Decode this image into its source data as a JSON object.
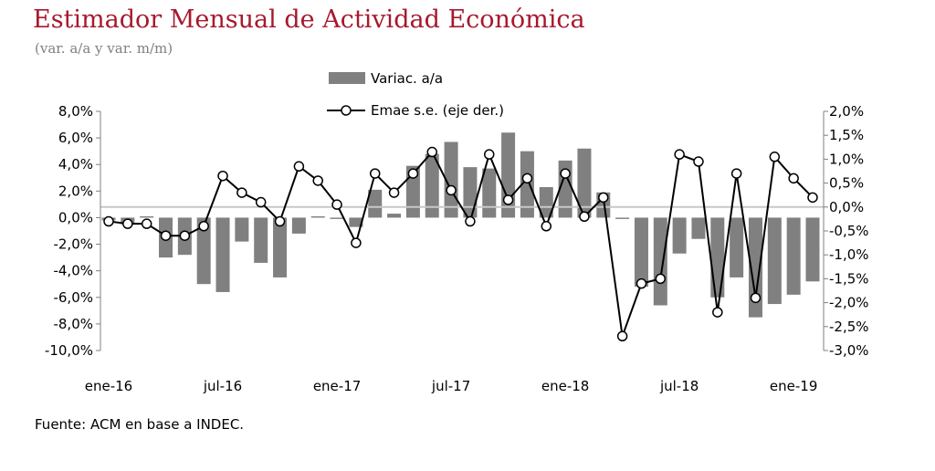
{
  "title": "Estimador Mensual de Actividad Económica",
  "subtitle": "(var. a/a y  var. m/m)",
  "source": "Fuente: ACM en base a INDEC.",
  "colors": {
    "title": "#a6192e",
    "bars": "#808080",
    "line": "#000000",
    "markerFill": "#ffffff",
    "zeroLine": "#c8c8c8",
    "axis": "#808080"
  },
  "chart_data": {
    "type": "bar",
    "categories": [
      "ene-16",
      "feb-16",
      "mar-16",
      "abr-16",
      "may-16",
      "jun-16",
      "jul-16",
      "ago-16",
      "sep-16",
      "oct-16",
      "nov-16",
      "dic-16",
      "ene-17",
      "feb-17",
      "mar-17",
      "abr-17",
      "may-17",
      "jun-17",
      "jul-17",
      "ago-17",
      "sep-17",
      "oct-17",
      "nov-17",
      "dic-17",
      "ene-18",
      "feb-18",
      "mar-18",
      "abr-18",
      "may-18",
      "jun-18",
      "jul-18",
      "ago-18",
      "sep-18",
      "oct-18",
      "nov-18",
      "dic-18",
      "ene-19",
      "feb-19"
    ],
    "x_tick_labels": [
      "ene-16",
      "jul-16",
      "ene-17",
      "jul-17",
      "ene-18",
      "jul-18",
      "ene-19"
    ],
    "series": [
      {
        "name": "Variac. a/a",
        "type": "bar",
        "axis": "left",
        "values": [
          -0.2,
          -0.5,
          0.1,
          -3.0,
          -2.8,
          -5.0,
          -5.6,
          -1.8,
          -3.4,
          -4.5,
          -1.2,
          0.1,
          -0.1,
          -0.7,
          2.1,
          0.3,
          3.9,
          4.8,
          5.7,
          3.8,
          3.7,
          6.4,
          5.0,
          2.3,
          4.3,
          5.2,
          1.9,
          -0.1,
          -5.2,
          -6.6,
          -2.7,
          -1.6,
          -6.0,
          -4.5,
          -7.5,
          -6.5,
          -5.8,
          -4.8
        ]
      },
      {
        "name": "Emae s.e. (eje der.)",
        "type": "line",
        "axis": "right",
        "values": [
          -0.3,
          -0.35,
          -0.35,
          -0.6,
          -0.6,
          -0.4,
          0.65,
          0.3,
          0.1,
          -0.3,
          0.85,
          0.55,
          0.05,
          -0.75,
          0.7,
          0.3,
          0.7,
          1.15,
          0.35,
          -0.3,
          1.1,
          0.15,
          0.6,
          -0.4,
          0.7,
          -0.2,
          0.2,
          -2.7,
          -1.6,
          -1.5,
          1.1,
          0.95,
          -2.2,
          0.7,
          -1.9,
          1.05,
          0.6,
          0.2
        ]
      }
    ],
    "left_axis": {
      "ylim": [
        -10,
        8
      ],
      "ticks": [
        "8,0%",
        "6,0%",
        "4,0%",
        "2,0%",
        "0,0%",
        "-2,0%",
        "-4,0%",
        "-6,0%",
        "-8,0%",
        "-10,0%"
      ]
    },
    "right_axis": {
      "ylim": [
        -3,
        2
      ],
      "ticks": [
        "2,0%",
        "1,5%",
        "1,0%",
        "0,5%",
        "0,0%",
        "-0,5%",
        "-1,0%",
        "-1,5%",
        "-2,0%",
        "-2,5%",
        "-3,0%"
      ]
    },
    "legend": "top-center",
    "grid": false
  }
}
